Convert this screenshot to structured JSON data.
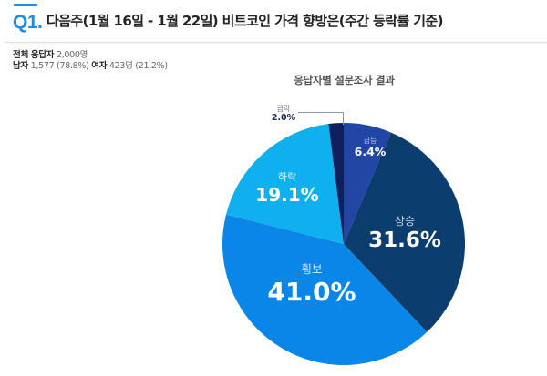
{
  "header": {
    "question_number": "Q1.",
    "question_title": "다음주(1월 16일 - 1월 22일)  비트코인 가격 향방은(주간 등락률 기준)",
    "accent_color": "#1a8ee6"
  },
  "respondents": {
    "total_label": "전체 응답자",
    "total_value": "2,000명",
    "male_label": "남자",
    "male_value": "1,577 (78.8%)",
    "female_label": "여자",
    "female_value": "423명 (21.2%)"
  },
  "chart_data": {
    "type": "pie",
    "title": "응답자별 설문조사 결과",
    "start_angle": "12 o'clock",
    "direction": "clockwise",
    "categories": [
      "급등",
      "상승",
      "횡보",
      "하락",
      "급락"
    ],
    "values": [
      6.4,
      31.6,
      41.0,
      19.1,
      2.0
    ],
    "unit": "%",
    "colors": [
      "#2146a3",
      "#0b3d6e",
      "#0a86e8",
      "#0fb0ee",
      "#0d1f5c"
    ],
    "labels": [
      "6.4%",
      "31.6%",
      "41.0%",
      "19.1%",
      "2.0%"
    ],
    "annotations": [
      "급락 2.0% shown via external callout line"
    ]
  }
}
